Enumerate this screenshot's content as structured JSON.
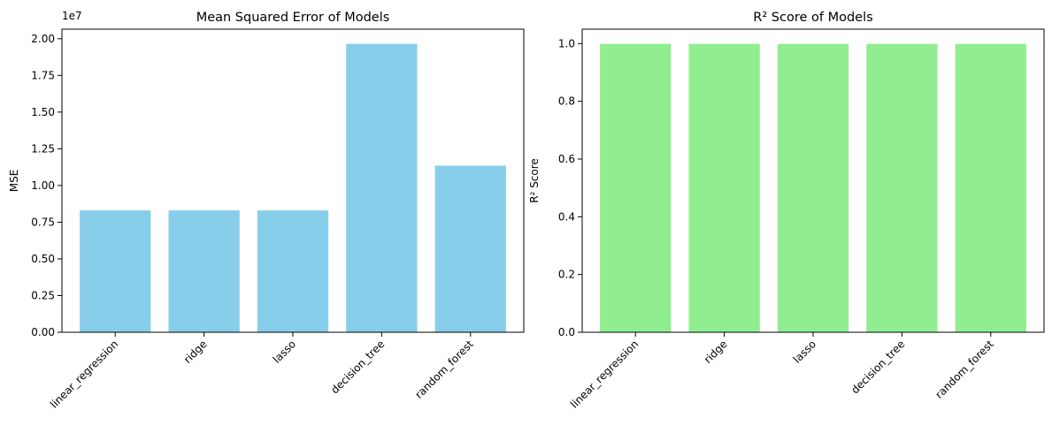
{
  "chart_data": [
    {
      "type": "bar",
      "title": "Mean Squared Error of Models",
      "xlabel": "",
      "ylabel": "MSE",
      "categories": [
        "linear_regression",
        "ridge",
        "lasso",
        "decision_tree",
        "random_forest"
      ],
      "values": [
        8300000,
        8300000,
        8300000,
        19650000,
        11350000
      ],
      "ylim": [
        0,
        20650000
      ],
      "yticks": [
        0,
        2500000,
        5000000,
        7500000,
        10000000,
        12500000,
        15000000,
        17500000,
        20000000
      ],
      "ytick_labels": [
        "0.00",
        "0.25",
        "0.50",
        "0.75",
        "1.00",
        "1.25",
        "1.50",
        "1.75",
        "2.00"
      ],
      "offset_text": "1e7",
      "bar_color": "#87CEEB",
      "grid": false,
      "xtick_rotation": 45
    },
    {
      "type": "bar",
      "title": "R² Score of Models",
      "xlabel": "",
      "ylabel": "R² Score",
      "categories": [
        "linear_regression",
        "ridge",
        "lasso",
        "decision_tree",
        "random_forest"
      ],
      "values": [
        0.999,
        0.999,
        0.999,
        0.999,
        0.999
      ],
      "ylim": [
        0,
        1.05
      ],
      "yticks": [
        0,
        0.2,
        0.4,
        0.6,
        0.8,
        1.0
      ],
      "ytick_labels": [
        "0.0",
        "0.2",
        "0.4",
        "0.6",
        "0.8",
        "1.0"
      ],
      "offset_text": "",
      "bar_color": "#90EE90",
      "grid": false,
      "xtick_rotation": 45
    }
  ]
}
